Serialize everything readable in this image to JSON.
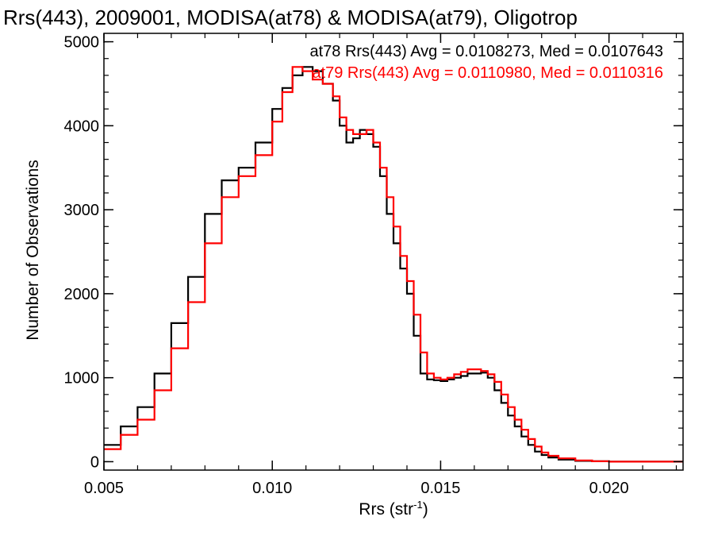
{
  "chart_data": {
    "type": "line",
    "title": "Rrs(443), 2009001, MODISA(at78) & MODISA(at79), Oligotrop",
    "xlabel": "Rrs (str",
    "xlabel_sup": "-1",
    "xlabel_close": ")",
    "ylabel": "Number of Observations",
    "xlim": [
      0.005,
      0.0222
    ],
    "ylim": [
      -100,
      5100
    ],
    "xticks": [
      0.005,
      0.01,
      0.015,
      0.02
    ],
    "xtick_labels": [
      "0.005",
      "0.010",
      "0.015",
      "0.020"
    ],
    "yticks": [
      0,
      1000,
      2000,
      3000,
      4000,
      5000
    ],
    "ytick_labels": [
      "0",
      "1000",
      "2000",
      "3000",
      "4000",
      "5000"
    ],
    "grid": false,
    "legend_position": "top-right",
    "series": [
      {
        "name": "at78 Rrs(443) Avg = 0.0108273, Med = 0.0107643",
        "color": "#000000",
        "x": [
          0.005,
          0.0055,
          0.006,
          0.0065,
          0.007,
          0.0075,
          0.008,
          0.0085,
          0.009,
          0.0095,
          0.01,
          0.0103,
          0.0106,
          0.0109,
          0.0112,
          0.0115,
          0.0118,
          0.012,
          0.0122,
          0.0124,
          0.0126,
          0.0128,
          0.013,
          0.0132,
          0.0134,
          0.0136,
          0.0138,
          0.014,
          0.0142,
          0.0144,
          0.0146,
          0.0148,
          0.015,
          0.0152,
          0.0154,
          0.0156,
          0.0158,
          0.016,
          0.0162,
          0.0164,
          0.0166,
          0.0168,
          0.017,
          0.0172,
          0.0174,
          0.0176,
          0.0178,
          0.018,
          0.0182,
          0.0185,
          0.019,
          0.0195,
          0.02,
          0.021,
          0.0222
        ],
        "y": [
          200,
          420,
          650,
          1050,
          1650,
          2200,
          2950,
          3350,
          3500,
          3800,
          4200,
          4450,
          4600,
          4700,
          4650,
          4500,
          4300,
          4000,
          3800,
          3850,
          3950,
          3900,
          3750,
          3400,
          2950,
          2600,
          2300,
          2000,
          1500,
          1050,
          980,
          970,
          960,
          980,
          1000,
          1020,
          1050,
          1050,
          1060,
          1000,
          850,
          700,
          550,
          420,
          300,
          200,
          120,
          80,
          50,
          25,
          10,
          5,
          0,
          0,
          0
        ]
      },
      {
        "name": "at79 Rrs(443) Avg = 0.0110980, Med = 0.0110316",
        "color": "#ff0000",
        "x": [
          0.005,
          0.0055,
          0.006,
          0.0065,
          0.007,
          0.0075,
          0.008,
          0.0085,
          0.009,
          0.0095,
          0.01,
          0.0103,
          0.0106,
          0.0109,
          0.0112,
          0.0115,
          0.0118,
          0.012,
          0.0122,
          0.0124,
          0.0126,
          0.0128,
          0.013,
          0.0132,
          0.0134,
          0.0136,
          0.0138,
          0.014,
          0.0142,
          0.0144,
          0.0146,
          0.0148,
          0.015,
          0.0152,
          0.0154,
          0.0156,
          0.0158,
          0.016,
          0.0162,
          0.0164,
          0.0166,
          0.0168,
          0.017,
          0.0172,
          0.0174,
          0.0176,
          0.0178,
          0.018,
          0.0182,
          0.0185,
          0.019,
          0.0195,
          0.02,
          0.021,
          0.0222
        ],
        "y": [
          150,
          320,
          500,
          850,
          1350,
          1900,
          2600,
          3150,
          3400,
          3650,
          4050,
          4400,
          4700,
          4650,
          4550,
          4500,
          4350,
          4100,
          3950,
          3900,
          3900,
          3950,
          3800,
          3500,
          3150,
          2800,
          2450,
          2150,
          1750,
          1300,
          1050,
          1000,
          980,
          1000,
          1040,
          1070,
          1100,
          1100,
          1080,
          1040,
          950,
          800,
          650,
          500,
          380,
          270,
          180,
          110,
          70,
          40,
          15,
          5,
          0,
          0,
          0
        ]
      }
    ]
  }
}
